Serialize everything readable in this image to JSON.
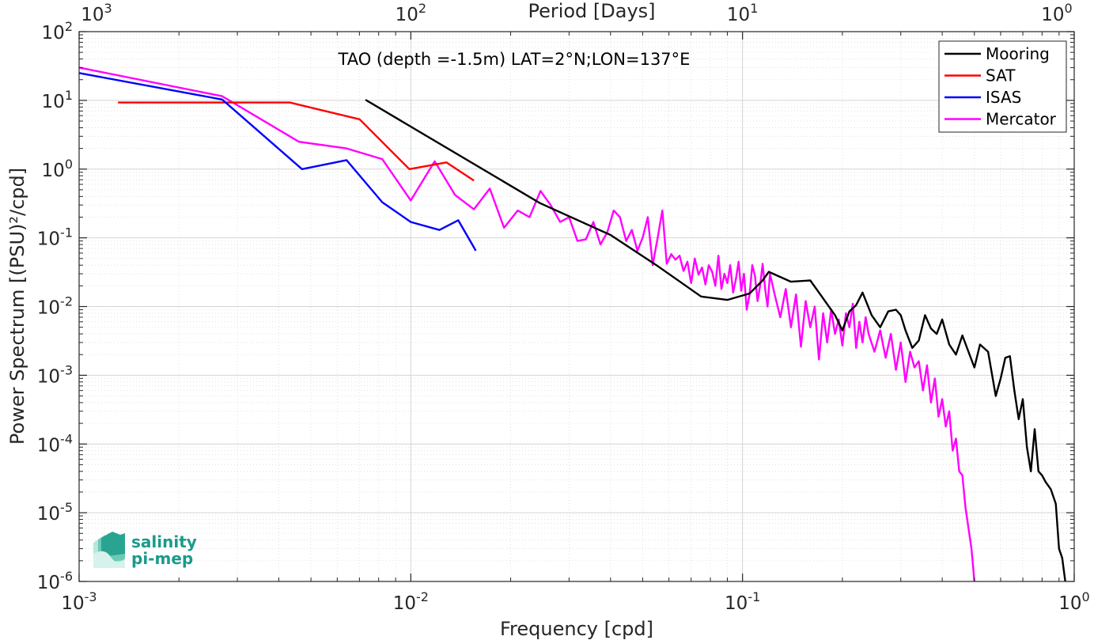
{
  "logo": {
    "line1": "salinity",
    "line2": "pi-mep"
  },
  "chart_data": {
    "type": "line",
    "title": "TAO (depth =-1.5m) LAT=2°N;LON=137°E",
    "xlabel": "Frequency [cpd]",
    "ylabel": "Power Spectrum [(PSU)²/cpd]",
    "top_xlabel": "Period [Days]",
    "xscale": "log",
    "yscale": "log",
    "xlim": [
      0.001,
      1
    ],
    "ylim": [
      1e-06,
      100
    ],
    "grid": true,
    "legend_position": "top-right",
    "x_ticks": [
      {
        "base": "10",
        "exp": "-3",
        "value": 0.001
      },
      {
        "base": "10",
        "exp": "-2",
        "value": 0.01
      },
      {
        "base": "10",
        "exp": "-1",
        "value": 0.1
      },
      {
        "base": "10",
        "exp": "0",
        "value": 1
      }
    ],
    "y_ticks": [
      {
        "base": "10",
        "exp": "2",
        "value": 100
      },
      {
        "base": "10",
        "exp": "1",
        "value": 10
      },
      {
        "base": "10",
        "exp": "0",
        "value": 1
      },
      {
        "base": "10",
        "exp": "-1",
        "value": 0.1
      },
      {
        "base": "10",
        "exp": "-2",
        "value": 0.01
      },
      {
        "base": "10",
        "exp": "-3",
        "value": 0.001
      },
      {
        "base": "10",
        "exp": "-4",
        "value": 0.0001
      },
      {
        "base": "10",
        "exp": "-5",
        "value": 1e-05
      },
      {
        "base": "10",
        "exp": "-6",
        "value": 1e-06
      }
    ],
    "top_ticks": [
      {
        "base": "10",
        "exp": "3",
        "value": 0.001
      },
      {
        "base": "10",
        "exp": "2",
        "value": 0.01
      },
      {
        "base": "10",
        "exp": "1",
        "value": 0.1
      },
      {
        "base": "10",
        "exp": "0",
        "value": 1
      }
    ],
    "series": [
      {
        "name": "Mooring",
        "color": "#000000",
        "x": [
          0.0073,
          0.0245,
          0.04,
          0.055,
          0.075,
          0.09,
          0.105,
          0.115,
          0.12,
          0.14,
          0.16,
          0.17,
          0.19,
          0.2,
          0.21,
          0.22,
          0.23,
          0.245,
          0.26,
          0.275,
          0.29,
          0.3,
          0.31,
          0.325,
          0.34,
          0.355,
          0.37,
          0.385,
          0.4,
          0.42,
          0.44,
          0.46,
          0.48,
          0.5,
          0.52,
          0.55,
          0.58,
          0.6,
          0.62,
          0.64,
          0.66,
          0.68,
          0.7,
          0.72,
          0.74,
          0.76,
          0.78,
          0.8,
          0.82,
          0.85,
          0.88,
          0.9,
          0.92,
          0.94
        ],
        "y": [
          10.2,
          0.32,
          0.11,
          0.04,
          0.014,
          0.0125,
          0.0155,
          0.024,
          0.032,
          0.023,
          0.024,
          0.016,
          0.0075,
          0.0045,
          0.0085,
          0.0105,
          0.016,
          0.0075,
          0.005,
          0.0085,
          0.009,
          0.0075,
          0.0045,
          0.0025,
          0.0032,
          0.0075,
          0.0048,
          0.004,
          0.0065,
          0.0028,
          0.002,
          0.0038,
          0.0022,
          0.0013,
          0.0028,
          0.0022,
          0.0005,
          0.0009,
          0.0018,
          0.0019,
          0.0006,
          0.00023,
          0.00045,
          9e-05,
          4e-05,
          0.000165,
          4e-05,
          3.5e-05,
          2.8e-05,
          2.2e-05,
          1.35e-05,
          3e-06,
          2.2e-06,
          1e-06
        ]
      },
      {
        "name": "SAT",
        "color": "#ff0000",
        "x": [
          0.00131,
          0.00432,
          0.00701,
          0.0099,
          0.0128,
          0.0155
        ],
        "y": [
          9.3,
          9.3,
          5.3,
          1.0,
          1.25,
          0.68
        ]
      },
      {
        "name": "ISAS",
        "color": "#0000ff",
        "x": [
          0.001,
          0.0027,
          0.0047,
          0.0064,
          0.0082,
          0.01,
          0.0122,
          0.0139,
          0.0157
        ],
        "y": [
          25,
          10.3,
          1.0,
          1.35,
          0.33,
          0.17,
          0.13,
          0.18,
          0.065
        ]
      },
      {
        "name": "Mercator",
        "color": "#ff00ff",
        "x": [
          0.001,
          0.0027,
          0.0046,
          0.0064,
          0.0082,
          0.01,
          0.0118,
          0.0136,
          0.0155,
          0.0173,
          0.0191,
          0.021,
          0.0228,
          0.0246,
          0.0264,
          0.0282,
          0.03,
          0.0318,
          0.0337,
          0.0355,
          0.0373,
          0.0391,
          0.0409,
          0.0427,
          0.0446,
          0.0464,
          0.0482,
          0.05,
          0.0518,
          0.0536,
          0.0555,
          0.0573,
          0.0591,
          0.061,
          0.0628,
          0.0646,
          0.0664,
          0.0682,
          0.07,
          0.0718,
          0.0737,
          0.0755,
          0.0773,
          0.0791,
          0.081,
          0.0828,
          0.0846,
          0.0864,
          0.0882,
          0.09,
          0.0918,
          0.0937,
          0.0955,
          0.0973,
          0.0991,
          0.101,
          0.103,
          0.105,
          0.107,
          0.109,
          0.111,
          0.113,
          0.115,
          0.117,
          0.119,
          0.121,
          0.123,
          0.125,
          0.13,
          0.135,
          0.14,
          0.145,
          0.15,
          0.155,
          0.16,
          0.165,
          0.17,
          0.175,
          0.18,
          0.185,
          0.19,
          0.195,
          0.2,
          0.205,
          0.21,
          0.215,
          0.22,
          0.225,
          0.23,
          0.235,
          0.24,
          0.25,
          0.26,
          0.27,
          0.28,
          0.29,
          0.3,
          0.31,
          0.32,
          0.33,
          0.34,
          0.35,
          0.36,
          0.37,
          0.38,
          0.39,
          0.4,
          0.41,
          0.42,
          0.43,
          0.44,
          0.45,
          0.46,
          0.47,
          0.48,
          0.49,
          0.5
        ],
        "y": [
          30,
          11.5,
          2.5,
          2.0,
          1.4,
          0.35,
          1.3,
          0.42,
          0.26,
          0.52,
          0.14,
          0.25,
          0.2,
          0.48,
          0.3,
          0.17,
          0.2,
          0.09,
          0.095,
          0.17,
          0.08,
          0.12,
          0.25,
          0.2,
          0.09,
          0.13,
          0.065,
          0.1,
          0.2,
          0.04,
          0.1,
          0.25,
          0.042,
          0.058,
          0.048,
          0.055,
          0.033,
          0.045,
          0.022,
          0.05,
          0.029,
          0.037,
          0.021,
          0.04,
          0.032,
          0.02,
          0.055,
          0.018,
          0.03,
          0.022,
          0.04,
          0.016,
          0.025,
          0.045,
          0.017,
          0.03,
          0.009,
          0.015,
          0.04,
          0.028,
          0.012,
          0.02,
          0.042,
          0.018,
          0.01,
          0.03,
          0.021,
          0.015,
          0.007,
          0.018,
          0.005,
          0.015,
          0.0026,
          0.012,
          0.005,
          0.01,
          0.0017,
          0.008,
          0.003,
          0.009,
          0.004,
          0.0065,
          0.0027,
          0.008,
          0.005,
          0.011,
          0.0025,
          0.006,
          0.003,
          0.007,
          0.004,
          0.0022,
          0.0045,
          0.0018,
          0.004,
          0.0012,
          0.003,
          0.0008,
          0.0022,
          0.0013,
          0.0016,
          0.0006,
          0.0014,
          0.0004,
          0.0009,
          0.00025,
          0.00045,
          0.00018,
          0.0003,
          8e-05,
          0.00012,
          4e-05,
          3.5e-05,
          1.2e-05,
          6e-06,
          3e-06,
          1e-06
        ]
      }
    ]
  }
}
